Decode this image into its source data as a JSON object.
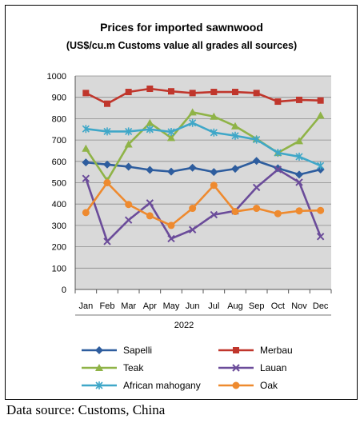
{
  "chart_data": {
    "type": "line",
    "title": "Prices for imported sawnwood",
    "subtitle": "(US$/cu.m Customs value all grades all sources)",
    "xlabel": "2022",
    "ylabel": "",
    "categories": [
      "Jan",
      "Feb",
      "Mar",
      "Apr",
      "May",
      "Jun",
      "Jul",
      "Aug",
      "Sep",
      "Oct",
      "Nov",
      "Dec"
    ],
    "ylim": [
      0,
      1000
    ],
    "yticks": [
      0,
      100,
      200,
      300,
      400,
      500,
      600,
      700,
      800,
      900,
      1000
    ],
    "grid": true,
    "legend_position": "bottom",
    "series": [
      {
        "name": "Sapelli",
        "color": "#2e5d9e",
        "marker": "diamond",
        "values": [
          595,
          585,
          575,
          560,
          552,
          570,
          550,
          565,
          602,
          568,
          538,
          562
        ]
      },
      {
        "name": "Merbau",
        "color": "#c0362c",
        "marker": "square",
        "values": [
          920,
          870,
          925,
          940,
          928,
          920,
          925,
          925,
          920,
          880,
          888,
          885
        ]
      },
      {
        "name": "Teak",
        "color": "#8fb347",
        "marker": "triangle",
        "values": [
          660,
          510,
          680,
          780,
          710,
          830,
          810,
          765,
          705,
          640,
          695,
          815
        ]
      },
      {
        "name": "Lauan",
        "color": "#6b4c9a",
        "marker": "x",
        "values": [
          520,
          225,
          325,
          405,
          238,
          280,
          350,
          368,
          478,
          562,
          502,
          248
        ]
      },
      {
        "name": "African mahogany",
        "color": "#3fa7c8",
        "marker": "star",
        "values": [
          752,
          740,
          740,
          750,
          738,
          780,
          735,
          720,
          702,
          640,
          622,
          580
        ]
      },
      {
        "name": "Oak",
        "color": "#ee8a2f",
        "marker": "circle",
        "values": [
          360,
          500,
          398,
          345,
          300,
          380,
          488,
          365,
          380,
          355,
          368,
          370
        ]
      }
    ]
  },
  "source_text": "Data source: Customs, China"
}
